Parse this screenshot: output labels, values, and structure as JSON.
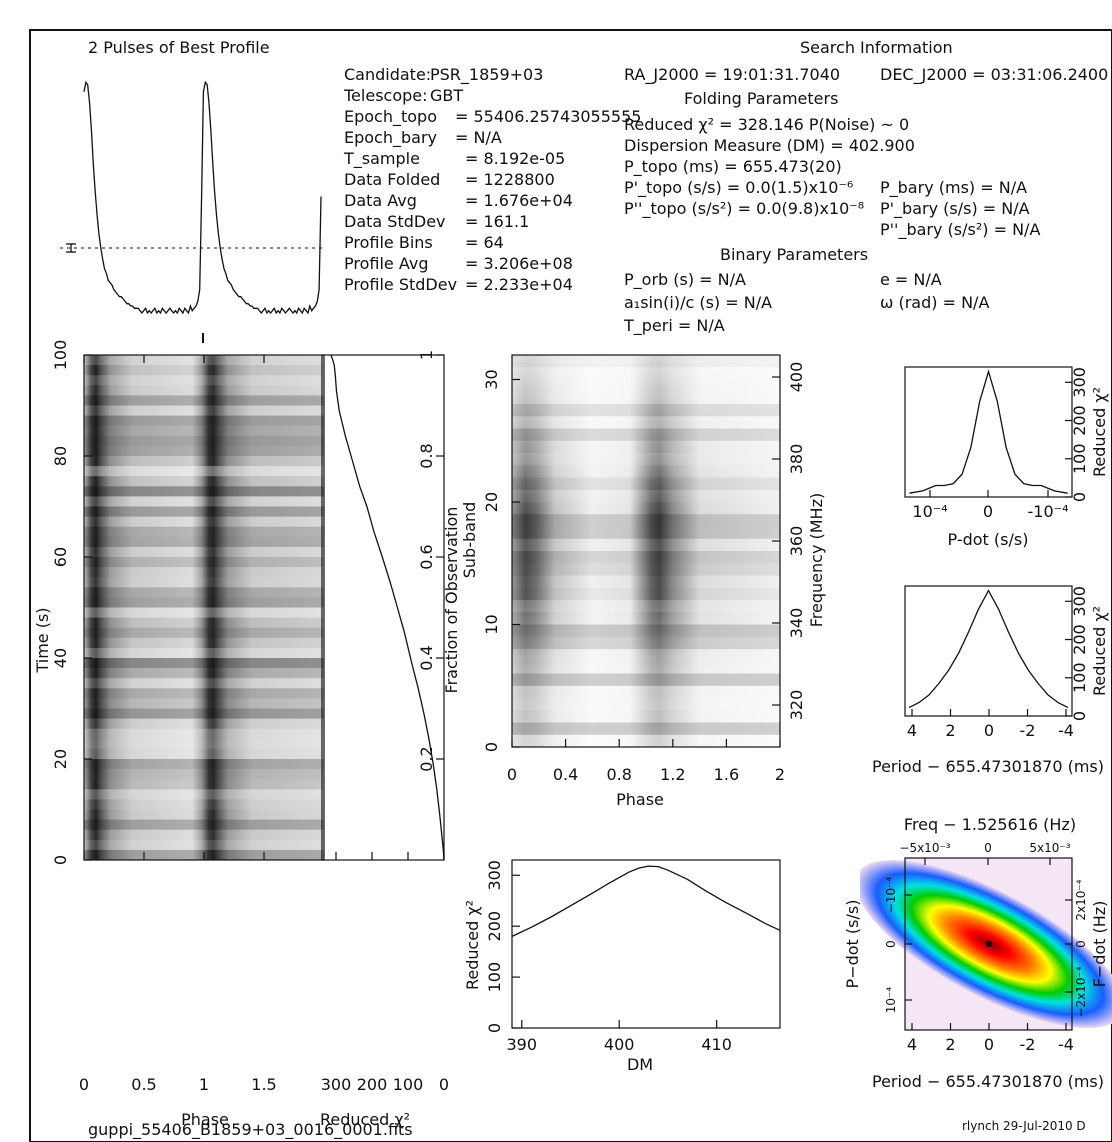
{
  "filename": "guppi_55406_B1859+03_0016_0001.fits",
  "credit": "rlynch 29-Jul-2010 D",
  "profile": {
    "title": "2 Pulses of Best Profile",
    "values": [
      0.95,
      0.99,
      0.98,
      0.9,
      0.78,
      0.64,
      0.52,
      0.42,
      0.34,
      0.28,
      0.23,
      0.19,
      0.17,
      0.14,
      0.13,
      0.12,
      0.1,
      0.09,
      0.08,
      0.07,
      0.07,
      0.06,
      0.05,
      0.04,
      0.04,
      0.03,
      0.03,
      0.02,
      0.02,
      0.02,
      0.01,
      0.0,
      0.01,
      0.02,
      0.0,
      0.01,
      0.0,
      0.01,
      0.02,
      0.0,
      0.01,
      0.0,
      0.02,
      0.01,
      0.0,
      0.01,
      0.02,
      0.01,
      0.0,
      0.01,
      0.0,
      0.02,
      0.01,
      0.0,
      0.02,
      0.01,
      0.0,
      0.03,
      0.01,
      0.02,
      0.03,
      0.05,
      0.1,
      0.5
    ]
  },
  "search_info": {
    "title": "Search Information",
    "left": [
      {
        "label": "Candidate:",
        "value": "PSR_1859+03"
      },
      {
        "label": "Telescope:",
        "value": "GBT"
      },
      {
        "label": "Epoch_topo",
        "value": "= 55406.25743055555"
      },
      {
        "label": "Epoch_bary",
        "value": "= N/A"
      },
      {
        "label": "T_sample",
        "value": "=  8.192e-05"
      },
      {
        "label": "Data Folded",
        "value": "=  1228800"
      },
      {
        "label": "Data Avg",
        "value": "=  1.676e+04"
      },
      {
        "label": "Data StdDev",
        "value": "=  161.1"
      },
      {
        "label": "Profile Bins",
        "value": "=  64"
      },
      {
        "label": "Profile Avg",
        "value": "=  3.206e+08"
      },
      {
        "label": "Profile StdDev",
        "value": "=  2.233e+04"
      }
    ],
    "ra": "RA_J2000 = 19:01:31.7040",
    "dec": "DEC_J2000 = 03:31:06.2400",
    "folding_title": "Folding Parameters",
    "folding": [
      "Reduced χ² = 328.146   P(Noise) ~ 0",
      "Dispersion Measure (DM) = 402.900",
      "P_topo (ms) =  655.473(20)",
      "P'_topo (s/s) = 0.0(1.5)x10⁻⁶",
      "P''_topo (s/s²) = 0.0(9.8)x10⁻⁸"
    ],
    "bary": [
      "P_bary (ms) = N/A",
      "P'_bary (s/s) = N/A",
      "P''_bary (s/s²) = N/A"
    ],
    "binary_title": "Binary Parameters",
    "binary_left": [
      "P_orb (s) = N/A",
      "a₁sin(i)/c (s) = N/A",
      "T_peri = N/A"
    ],
    "binary_right": [
      "e = N/A",
      "ω (rad) = N/A"
    ]
  },
  "chart_data": [
    {
      "type": "heatmap",
      "name": "time-phase",
      "xlabel": "Phase",
      "ylabel": "Time (s)",
      "xlim": [
        0,
        2
      ],
      "ylim": [
        0,
        100
      ],
      "xticks": [
        "0",
        "0.5",
        "1",
        "1.5"
      ],
      "yticks": [
        "0",
        "20",
        "40",
        "60",
        "80",
        "100"
      ],
      "right_axis_label": "Fraction of Observation",
      "right_ticks": [
        "0.2",
        "0.4",
        "0.6",
        "0.8",
        "1"
      ],
      "rows": 50,
      "pulse_phases": [
        0.05,
        1.05
      ]
    },
    {
      "type": "line",
      "name": "time-chi2",
      "xlabel": "Reduced χ²",
      "xticks": [
        "300",
        "200",
        "100",
        "0"
      ],
      "x": [
        0,
        2,
        6,
        12,
        20,
        30,
        42,
        56,
        72,
        90,
        110,
        130,
        150,
        172,
        195,
        215,
        235,
        255,
        275,
        292,
        300,
        303,
        306,
        310,
        315
      ],
      "y": [
        0,
        2,
        5,
        9,
        14,
        19,
        24,
        29,
        34,
        39,
        45,
        50,
        55,
        60,
        65,
        70,
        74,
        79,
        84,
        89,
        93,
        96,
        98,
        99,
        100
      ]
    },
    {
      "type": "heatmap",
      "name": "subband-phase",
      "xlabel": "Phase",
      "ylabel": "Sub-band",
      "xlim": [
        0,
        2
      ],
      "ylim": [
        0,
        32
      ],
      "xticks": [
        "0",
        "0.4",
        "0.8",
        "1.2",
        "1.6",
        "2"
      ],
      "yticks": [
        "0",
        "10",
        "20",
        "30"
      ],
      "right_axis_label": "Frequency (MHz)",
      "right_ticks": [
        "320",
        "340",
        "360",
        "380",
        "400"
      ],
      "pulse_phases": [
        0.1,
        1.1
      ]
    },
    {
      "type": "line",
      "name": "dm-chi2",
      "xlabel": "DM",
      "ylabel": "Reduced χ²",
      "xlim": [
        389,
        416.5
      ],
      "ylim": [
        0,
        330
      ],
      "xticks": [
        "390",
        "400",
        "410"
      ],
      "yticks": [
        "0",
        "100",
        "200",
        "300"
      ],
      "x": [
        389,
        391,
        393,
        395,
        397,
        399,
        401,
        402,
        403,
        404,
        405,
        407,
        409,
        411,
        413,
        415,
        416.5
      ],
      "y": [
        180,
        198,
        218,
        240,
        262,
        285,
        306,
        314,
        318,
        317,
        310,
        292,
        268,
        246,
        226,
        205,
        192
      ]
    },
    {
      "type": "line",
      "name": "pdot-chi2",
      "xlabel": "P-dot (s/s)",
      "ylabel": "Reduced χ²",
      "xticks": [
        "10⁻⁴",
        "0",
        "-10⁻⁴"
      ],
      "yticks": [
        "0",
        "100",
        "200",
        "300"
      ],
      "x": [
        -1.8,
        -1.5,
        -1.2,
        -1.0,
        -0.8,
        -0.6,
        -0.4,
        -0.2,
        0,
        0.2,
        0.4,
        0.6,
        0.8,
        1.0,
        1.2,
        1.5,
        1.8
      ],
      "y": [
        10,
        16,
        30,
        30,
        35,
        60,
        130,
        250,
        328,
        250,
        130,
        60,
        35,
        30,
        30,
        16,
        10
      ]
    },
    {
      "type": "line",
      "name": "period-chi2",
      "xlabel": "Period − 655.47301870 (ms)",
      "ylabel": "Reduced χ²",
      "xticks": [
        "4",
        "2",
        "0",
        "-2",
        "-4"
      ],
      "yticks": [
        "0",
        "100",
        "200",
        "300"
      ],
      "x": [
        4,
        3.5,
        3,
        2.5,
        2,
        1.5,
        1,
        0.5,
        0,
        -0.5,
        -1,
        -1.5,
        -2,
        -2.5,
        -3,
        -3.5,
        -4
      ],
      "y": [
        22,
        35,
        55,
        85,
        120,
        165,
        220,
        280,
        328,
        280,
        220,
        165,
        120,
        85,
        55,
        35,
        22
      ]
    },
    {
      "type": "heatmap",
      "name": "period-pdot",
      "title": "Freq − 1.525616 (Hz)",
      "xlabel": "Period − 655.47301870 (ms)",
      "ylabel": "P−dot (s/s)",
      "right_axis_label": "F−dot (Hz)",
      "xticks": [
        "4",
        "2",
        "0",
        "-2",
        "-4"
      ],
      "top_ticks": [
        "−5x10⁻³",
        "0",
        "5x10⁻³"
      ],
      "left_ticks": [
        "−10⁻⁴",
        "0",
        "10⁻⁴"
      ],
      "right_ticks": [
        "2x10⁻⁴",
        "0",
        "−2x10⁻⁴"
      ]
    }
  ]
}
